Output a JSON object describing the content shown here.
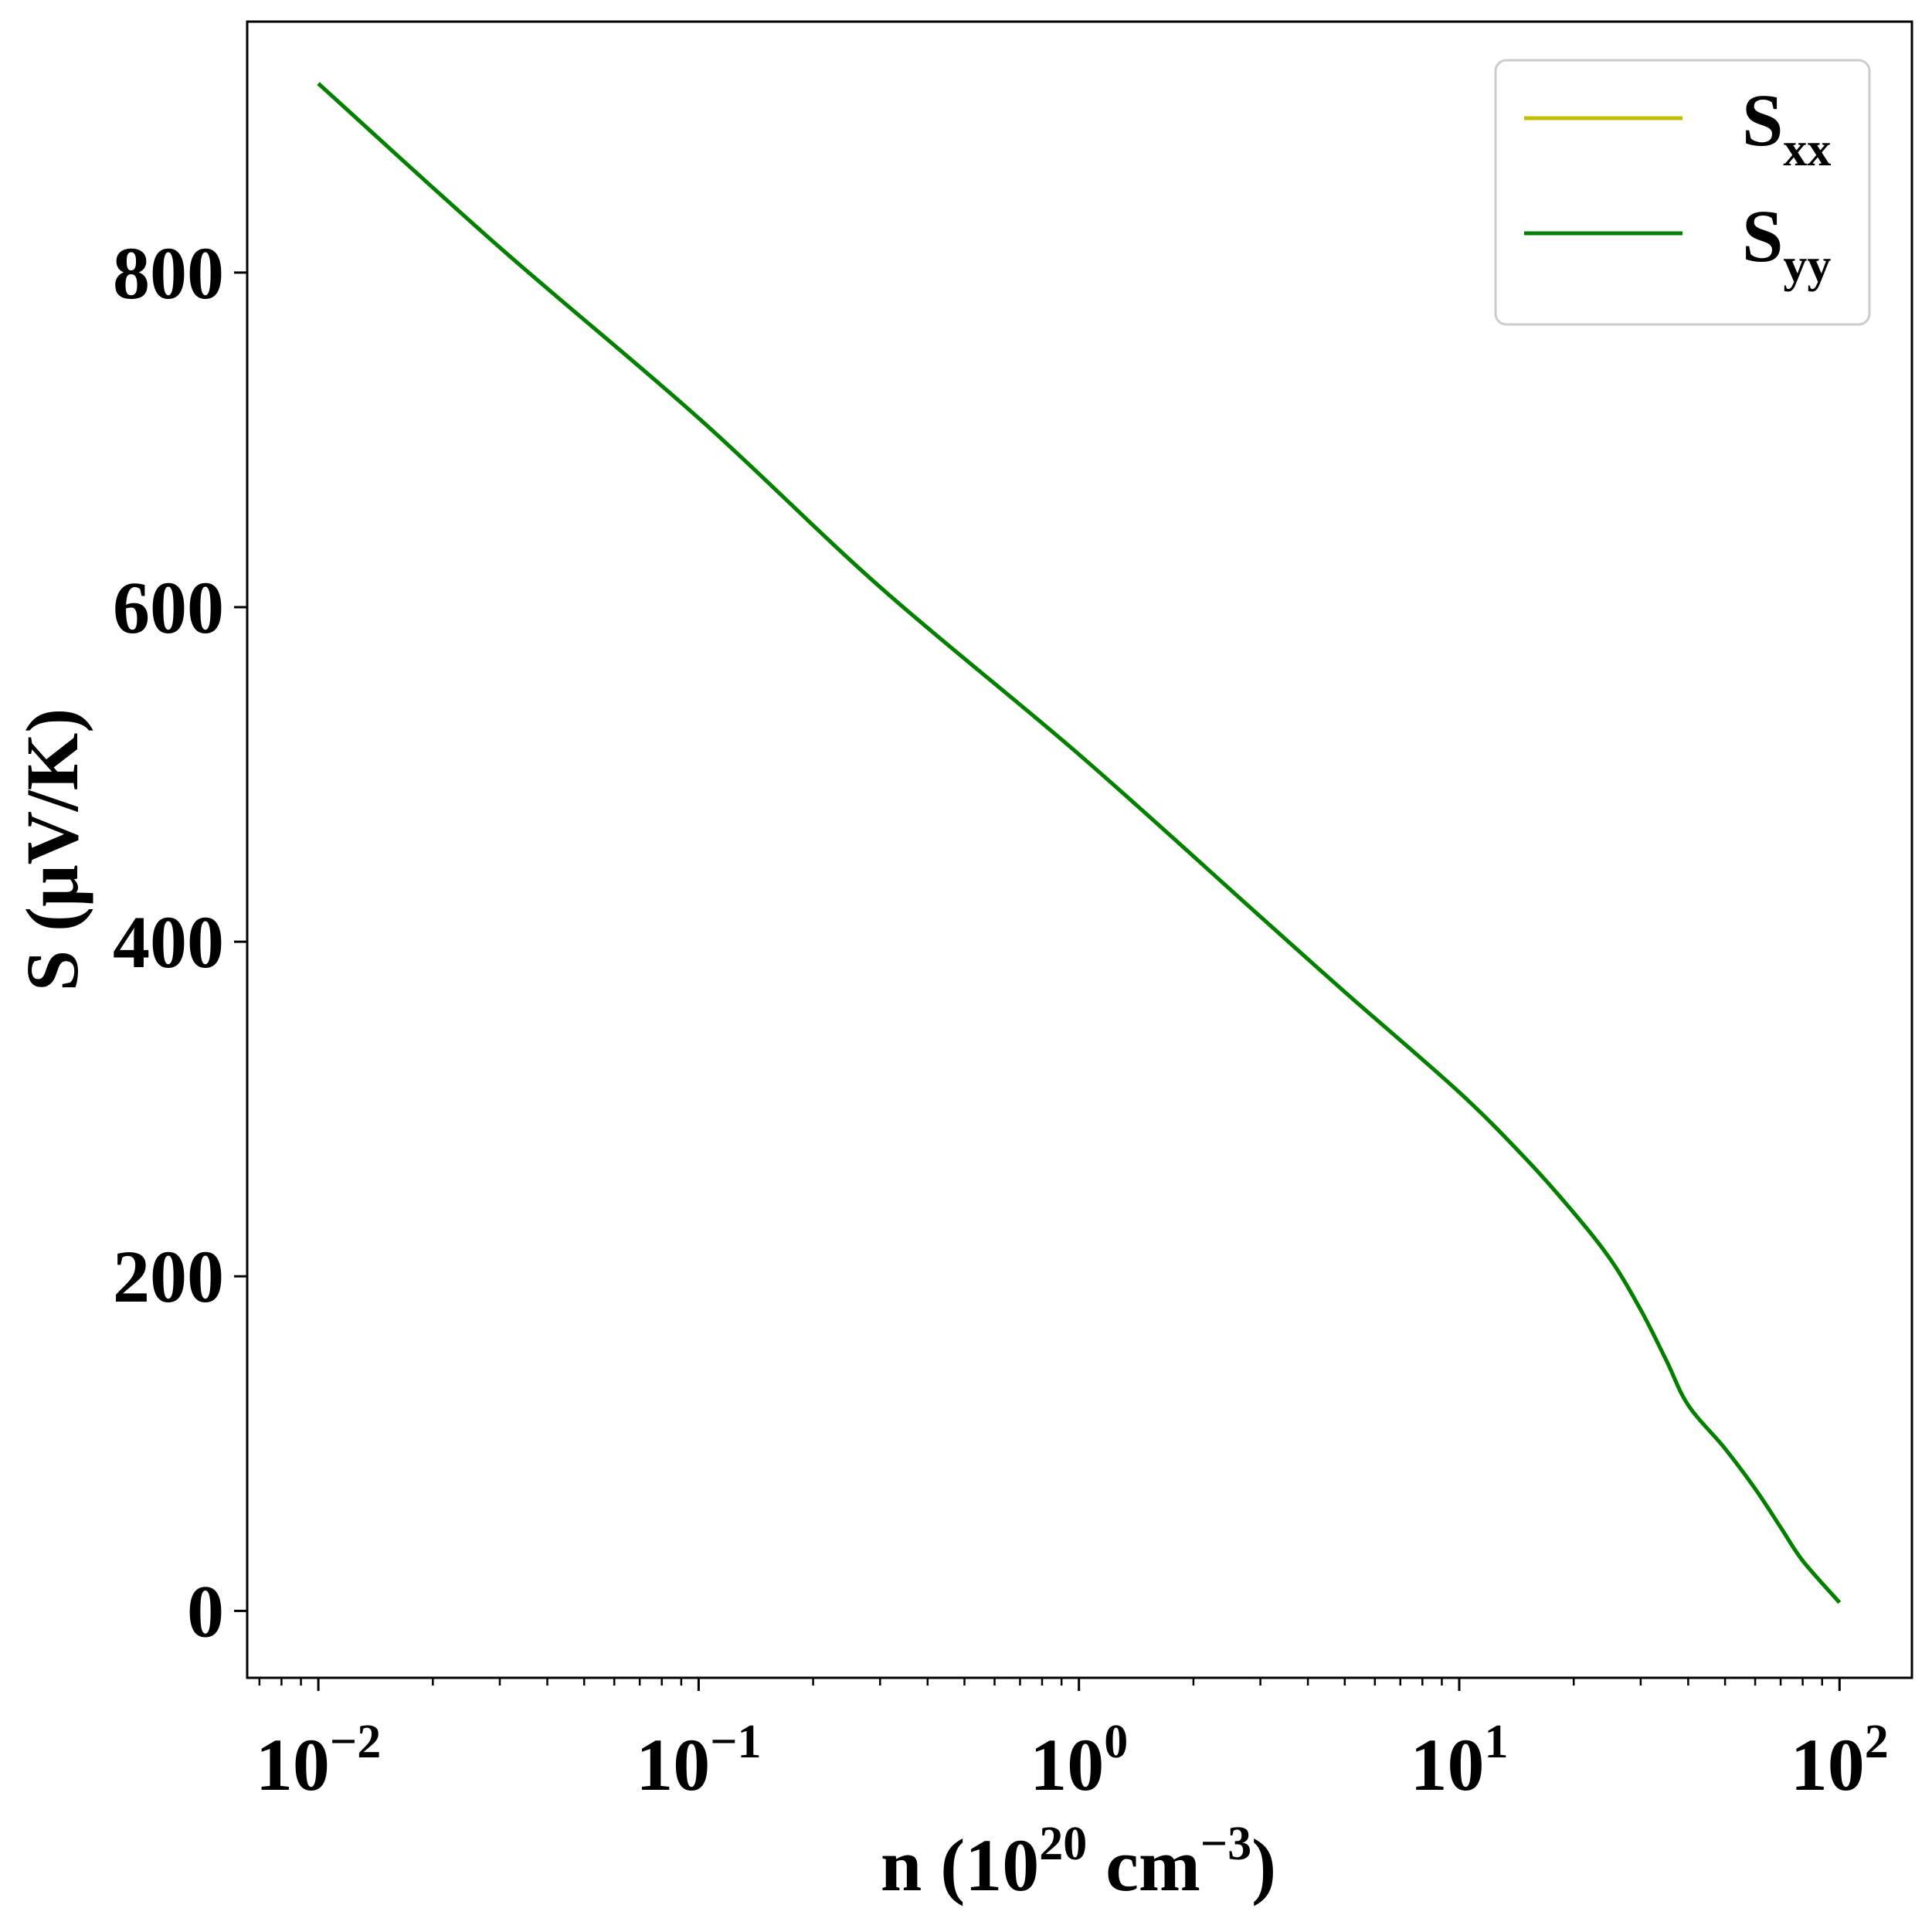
{
  "chart_data": {
    "type": "line",
    "xlabel": {
      "base": "n (10",
      "sup1": "20",
      "mid": " cm",
      "sup2": "−3",
      "end": ")"
    },
    "ylabel": "S (μV/K)",
    "xscale": "log",
    "xlim": [
      0.0065,
      155
    ],
    "ylim": [
      -40,
      950
    ],
    "x_ticks": [
      {
        "value": 0.01,
        "base": "10",
        "exp": "−2"
      },
      {
        "value": 0.1,
        "base": "10",
        "exp": "−1"
      },
      {
        "value": 1,
        "base": "10",
        "exp": "0"
      },
      {
        "value": 10,
        "base": "10",
        "exp": "1"
      },
      {
        "value": 100,
        "base": "10",
        "exp": "2"
      }
    ],
    "y_ticks": [
      {
        "value": 0,
        "label": "0"
      },
      {
        "value": 200,
        "label": "200"
      },
      {
        "value": 400,
        "label": "400"
      },
      {
        "value": 600,
        "label": "600"
      },
      {
        "value": 800,
        "label": "800"
      }
    ],
    "grid": false,
    "legend_position": "top-right",
    "series": [
      {
        "name": {
          "main": "S",
          "sub": "xx"
        },
        "color": "#bfbf00",
        "x": [
          0.01,
          0.03,
          0.1,
          0.3,
          1,
          3,
          5,
          10,
          15,
          20,
          25,
          30,
          35,
          40,
          50,
          60,
          70,
          80,
          100
        ],
        "y": [
          913,
          815,
          713,
          612,
          512,
          415,
          370,
          310,
          270,
          238,
          210,
          180,
          150,
          123,
          97,
          73,
          50,
          30,
          5
        ]
      },
      {
        "name": {
          "main": "S",
          "sub": "yy"
        },
        "color": "#008000",
        "x": [
          0.01,
          0.03,
          0.1,
          0.3,
          1,
          3,
          5,
          10,
          15,
          20,
          25,
          30,
          35,
          40,
          50,
          60,
          70,
          80,
          100
        ],
        "y": [
          913,
          815,
          713,
          612,
          512,
          415,
          370,
          310,
          270,
          238,
          210,
          180,
          150,
          123,
          97,
          73,
          50,
          30,
          5
        ]
      }
    ]
  }
}
